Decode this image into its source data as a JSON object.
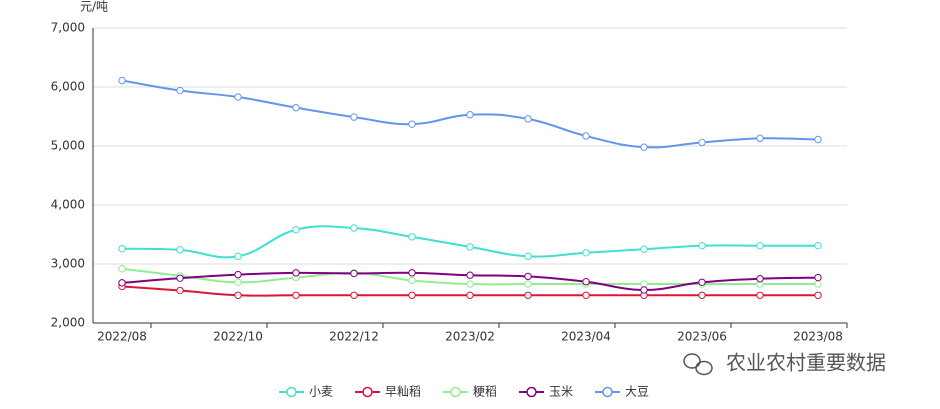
{
  "chart_data": {
    "type": "line",
    "y_unit": "元/吨",
    "categories": [
      "2022/08",
      null,
      "2022/10",
      null,
      "2022/12",
      null,
      "2023/02",
      null,
      "2023/04",
      null,
      "2023/06",
      null,
      "2023/08"
    ],
    "series": [
      {
        "name": "小麦",
        "color": "#40e0d0",
        "values": [
          3260,
          3240,
          3130,
          3580,
          3610,
          3460,
          3290,
          3130,
          3190,
          3250,
          3310,
          3310,
          3310
        ]
      },
      {
        "name": "早籼稻",
        "color": "#dc143c",
        "values": [
          2620,
          2550,
          2470,
          2470,
          2470,
          2470,
          2470,
          2470,
          2470,
          2470,
          2470,
          2470,
          2470
        ]
      },
      {
        "name": "粳稻",
        "color": "#90ee90",
        "values": [
          2920,
          2800,
          2690,
          2770,
          2850,
          2720,
          2660,
          2660,
          2660,
          2660,
          2660,
          2660,
          2660
        ]
      },
      {
        "name": "玉米",
        "color": "#800080",
        "values": [
          2680,
          2760,
          2820,
          2850,
          2840,
          2850,
          2810,
          2790,
          2700,
          2560,
          2690,
          2750,
          2770
        ]
      },
      {
        "name": "大豆",
        "color": "#6495ed",
        "values": [
          6110,
          5940,
          5830,
          5650,
          5490,
          5370,
          5530,
          5460,
          5170,
          4980,
          5060,
          5130,
          5110
        ]
      }
    ],
    "ylim": [
      2000,
      7000
    ],
    "yticks": [
      {
        "value": 2000,
        "label": "2,000"
      },
      {
        "value": 3000,
        "label": "3,000"
      },
      {
        "value": 4000,
        "label": "4,000"
      },
      {
        "value": 5000,
        "label": "5,000"
      },
      {
        "value": 6000,
        "label": "6,000"
      },
      {
        "value": 7000,
        "label": "7,000"
      }
    ],
    "grid": true,
    "legend": "bottom",
    "watermark": "农业农村重要数据"
  }
}
